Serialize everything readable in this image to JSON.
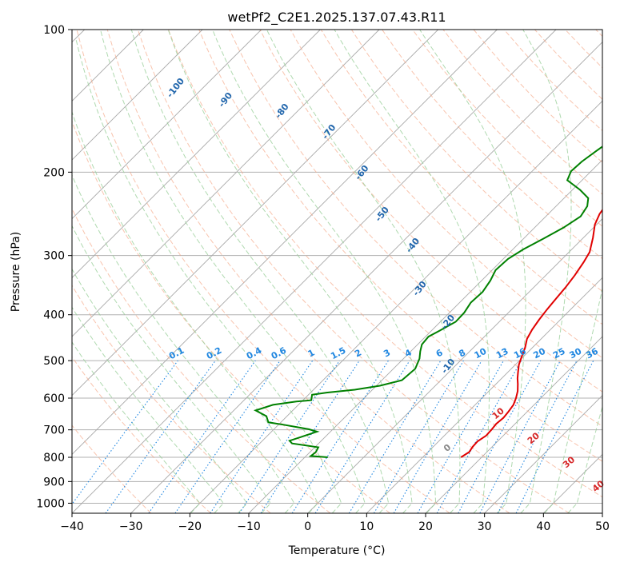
{
  "chart_data": {
    "type": "line",
    "title": "wetPf2_C2E1.2025.137.07.43.R11",
    "xlabel": "Temperature (°C)",
    "ylabel": "Pressure (hPa)",
    "xlim": [
      -40,
      50
    ],
    "ylim": [
      1050,
      100
    ],
    "y_scale": "log",
    "x_ticks": [
      -40,
      -30,
      -20,
      -10,
      0,
      10,
      20,
      30,
      40,
      50
    ],
    "y_ticks": [
      100,
      200,
      300,
      400,
      500,
      600,
      700,
      800,
      900,
      1000
    ],
    "grid": true,
    "skew_t": true,
    "series": [
      {
        "color": "#e00000",
        "profile": "temperature",
        "points": [
          [
            16.5,
            800
          ],
          [
            17.0,
            780
          ],
          [
            16.7,
            760
          ],
          [
            16.6,
            740
          ],
          [
            17.1,
            720
          ],
          [
            17.0,
            700
          ],
          [
            16.8,
            680
          ],
          [
            17.0,
            660
          ],
          [
            16.8,
            640
          ],
          [
            16.5,
            620
          ],
          [
            15.8,
            600
          ],
          [
            14.9,
            580
          ],
          [
            13.7,
            560
          ],
          [
            12.7,
            545
          ],
          [
            11.8,
            530
          ],
          [
            10.6,
            510
          ],
          [
            9.7,
            490
          ],
          [
            8.8,
            470
          ],
          [
            7.6,
            450
          ],
          [
            6.9,
            430
          ],
          [
            6.4,
            410
          ],
          [
            6.0,
            390
          ],
          [
            5.7,
            370
          ],
          [
            5.4,
            350
          ],
          [
            4.9,
            330
          ],
          [
            4.2,
            310
          ],
          [
            3.5,
            295
          ],
          [
            1.6,
            275
          ],
          [
            -0.3,
            258
          ],
          [
            -1.3,
            245
          ],
          [
            -1.7,
            235
          ],
          [
            -1.7,
            225
          ],
          [
            -1.2,
            215
          ],
          [
            -0.6,
            205
          ],
          [
            0.3,
            195
          ],
          [
            1.6,
            185
          ],
          [
            3.5,
            175
          ],
          [
            5.1,
            165
          ],
          [
            6.9,
            158
          ],
          [
            8.4,
            150
          ],
          [
            9.4,
            143
          ],
          [
            10.3,
            136
          ],
          [
            10.8,
            128
          ],
          [
            11.0,
            120
          ],
          [
            11.4,
            114
          ],
          [
            12.6,
            108
          ],
          [
            13.5,
            104
          ],
          [
            13.9,
            100
          ]
        ]
      },
      {
        "color": "#008000",
        "profile": "dewpoint",
        "points": [
          [
            -6.1,
            800
          ],
          [
            -9.2,
            795
          ],
          [
            -9.0,
            780
          ],
          [
            -9.4,
            762
          ],
          [
            -14.5,
            748
          ],
          [
            -15.4,
            738
          ],
          [
            -14.1,
            725
          ],
          [
            -12.3,
            706
          ],
          [
            -14.1,
            698
          ],
          [
            -19.1,
            683
          ],
          [
            -22.1,
            675
          ],
          [
            -23.5,
            655
          ],
          [
            -26.3,
            637
          ],
          [
            -24.3,
            620
          ],
          [
            -20.9,
            610
          ],
          [
            -18.6,
            606
          ],
          [
            -19.4,
            590
          ],
          [
            -17.3,
            584
          ],
          [
            -13.0,
            576
          ],
          [
            -9.4,
            565
          ],
          [
            -6.6,
            550
          ],
          [
            -6.3,
            520
          ],
          [
            -7.3,
            495
          ],
          [
            -8.4,
            478
          ],
          [
            -9.3,
            462
          ],
          [
            -9.5,
            445
          ],
          [
            -8.6,
            432
          ],
          [
            -7.4,
            414
          ],
          [
            -7.5,
            396
          ],
          [
            -8.1,
            377
          ],
          [
            -7.9,
            358
          ],
          [
            -8.5,
            339
          ],
          [
            -9.4,
            322
          ],
          [
            -9.2,
            305
          ],
          [
            -8.2,
            291
          ],
          [
            -6.6,
            276
          ],
          [
            -5.1,
            262
          ],
          [
            -4.1,
            248
          ],
          [
            -4.7,
            236
          ],
          [
            -5.9,
            227
          ],
          [
            -8.7,
            218
          ],
          [
            -12.5,
            208
          ],
          [
            -13.4,
            199
          ],
          [
            -13.2,
            190
          ],
          [
            -12.6,
            181
          ],
          [
            -11.8,
            171
          ],
          [
            -11.6,
            158
          ],
          [
            -11.1,
            146
          ],
          [
            -9.1,
            132
          ],
          [
            -6.2,
            121
          ],
          [
            -4.5,
            115
          ],
          [
            -3.3,
            109
          ],
          [
            -1.3,
            100
          ]
        ]
      }
    ],
    "annotations": {
      "dry_adiabat_labels": [
        "-100",
        "-90",
        "-80",
        "-70",
        "-60",
        "-50",
        "-40",
        "-30",
        "-20",
        "-10"
      ],
      "moist_adiabat_labels": [
        "0",
        "10",
        "20",
        "30",
        "40"
      ],
      "mixing_ratio_labels": [
        "0.1",
        "0.2",
        "0.4",
        "0.6",
        "1",
        "1.5",
        "2",
        "3",
        "4",
        "6",
        "8",
        "10",
        "13",
        "16",
        "20",
        "25",
        "30",
        "36"
      ]
    },
    "colors": {
      "temperature": "#e00000",
      "dewpoint": "#008000",
      "isotherm": "#999999",
      "dry_adiabat": "#f4a582",
      "moist_adiabat": "#9bd09b",
      "mixing_ratio": "#1f86e0",
      "dry_label": "#2166ac",
      "moist_label": "#d62728"
    }
  }
}
